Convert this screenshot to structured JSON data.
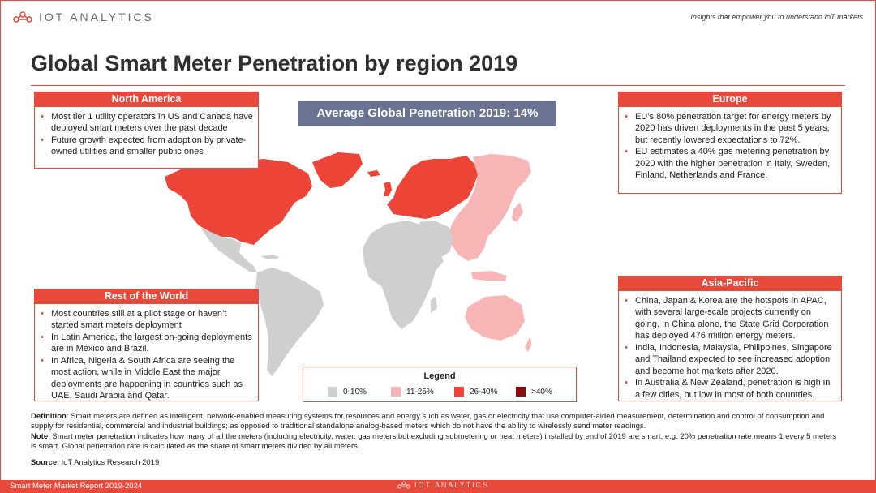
{
  "header": {
    "logo_text": "IOT ANALYTICS",
    "tagline": "Insights that empower you to understand IoT markets",
    "title": "Global Smart Meter Penetration by region 2019"
  },
  "average_banner": "Average Global Penetration 2019: 14%",
  "regions": {
    "north_america": {
      "title": "North America",
      "bullets": [
        "Most tier 1 utility operators in US and Canada have deployed smart meters over the past decade",
        "Future growth expected from adoption by private-owned utilities and smaller public ones"
      ],
      "map_class": "26-40%"
    },
    "europe": {
      "title": "Europe",
      "bullets": [
        "EU’s 80% penetration target for energy meters by 2020 has driven deployments in the past 5 years, but recently lowered expectations to 72%.",
        "EU estimates a 40% gas metering penetration by 2020 with the higher penetration in Italy, Sweden, Finland, Netherlands and France."
      ],
      "map_class": "26-40%"
    },
    "rest_of_world": {
      "title": "Rest of the World",
      "bullets": [
        "Most countries still at a pilot stage or haven’t started smart meters deployment",
        "In Latin America, the largest on-going deployments are in Mexico and Brazil.",
        "In Africa, Nigeria & South Africa are seeing the most action, while in Middle East the major deployments are happening in countries such as UAE, Saudi Arabia and Qatar."
      ],
      "map_class": "0-10%"
    },
    "asia_pacific": {
      "title": "Asia-Pacific",
      "bullets": [
        "China, Japan & Korea are the hotspots in APAC, with several large-scale projects currently on going. In China alone, the State Grid Corporation has deployed 476 million energy meters.",
        "India, Indonesia, Malaysia, Philippines, Singapore and Thailand expected to see increased adoption and become hot markets after 2020.",
        "In Australia & New Zealand, penetration is high in a few cities, but low in most of both countries."
      ],
      "map_class": "11-25%"
    }
  },
  "legend": {
    "title": "Legend",
    "items": [
      {
        "label": "0-10%",
        "color": "#cfcfcf"
      },
      {
        "label": "11-25%",
        "color": "#f7b5b5"
      },
      {
        "label": "26-40%",
        "color": "#ec4437"
      },
      {
        "label": ">40%",
        "color": "#8c0d0d"
      }
    ]
  },
  "notes": {
    "definition_label": "Definition",
    "definition_text": ": Smart meters are defined as intelligent, network-enabled measuring systems for resources and energy such as water, gas or electricity that use computer-aided measurement, determination and control of consumption and supply for residential, commercial and industrial buildings;  as opposed to traditional standalone analog-based meters which do not have the ability to wirelessly send meter readings.",
    "note_label": "Note",
    "note_text": ": Smart meter penetration indicates how many of all the meters (including electricity, water, gas meters but excluding submetering or heat meters) installed by end of 2019 are smart, e.g. 20% penetration rate means 1 every 5 meters is smart. Global penetration rate is calculated as the share of smart meters divided by all meters.",
    "source_label": "Source",
    "source_text": ": IoT Analytics Research 2019"
  },
  "footer": {
    "report": "Smart Meter Market Report 2019-2024",
    "logo_text": "IOT ANALYTICS"
  },
  "colors": {
    "accent": "#e8493a",
    "banner": "#6b7392",
    "low": "#cfcfcf",
    "mid": "#f7b5b5",
    "high": "#ec4437",
    "top": "#8c0d0d"
  }
}
